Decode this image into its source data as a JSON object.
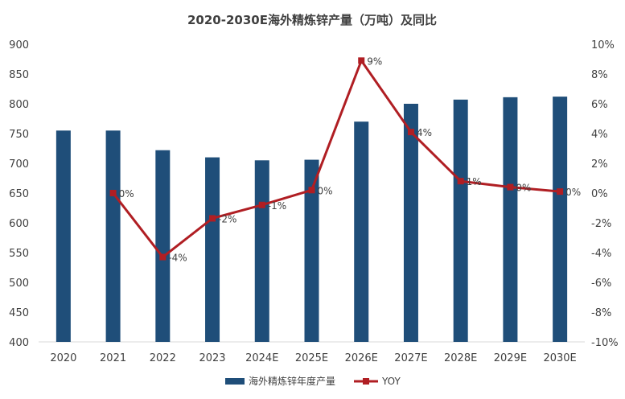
{
  "chart_data": {
    "type": "bar+line",
    "title": "2020-2030E海外精炼锌产量（万吨）及同比",
    "categories": [
      "2020",
      "2021",
      "2022",
      "2023",
      "2024E",
      "2025E",
      "2026E",
      "2027E",
      "2028E",
      "2029E",
      "2030E"
    ],
    "series": [
      {
        "name": "海外精炼锌年度产量",
        "type": "bar",
        "axis": "left",
        "color": "#1F4E79",
        "values": [
          755,
          755,
          722,
          710,
          705,
          706,
          770,
          800,
          807,
          811,
          812
        ]
      },
      {
        "name": "YOY",
        "type": "line",
        "axis": "right",
        "color": "#B01E23",
        "values": [
          null,
          0.0,
          -4.3,
          -1.7,
          -0.8,
          0.2,
          8.9,
          4.1,
          0.8,
          0.4,
          0.1
        ],
        "labels": [
          null,
          "0%",
          "-4%",
          "-2%",
          "-1%",
          "0%",
          "9%",
          "4%",
          "1%",
          "0%",
          "0%"
        ]
      }
    ],
    "y_left": {
      "min": 400,
      "max": 900,
      "step": 50,
      "ticks": [
        "400",
        "450",
        "500",
        "550",
        "600",
        "650",
        "700",
        "750",
        "800",
        "850",
        "900"
      ]
    },
    "y_right": {
      "min": -10,
      "max": 10,
      "step": 2,
      "ticks": [
        "-10%",
        "-8%",
        "-6%",
        "-4%",
        "-2%",
        "0%",
        "2%",
        "4%",
        "6%",
        "8%",
        "10%"
      ]
    },
    "grid": false,
    "legend": "bottom-center"
  }
}
